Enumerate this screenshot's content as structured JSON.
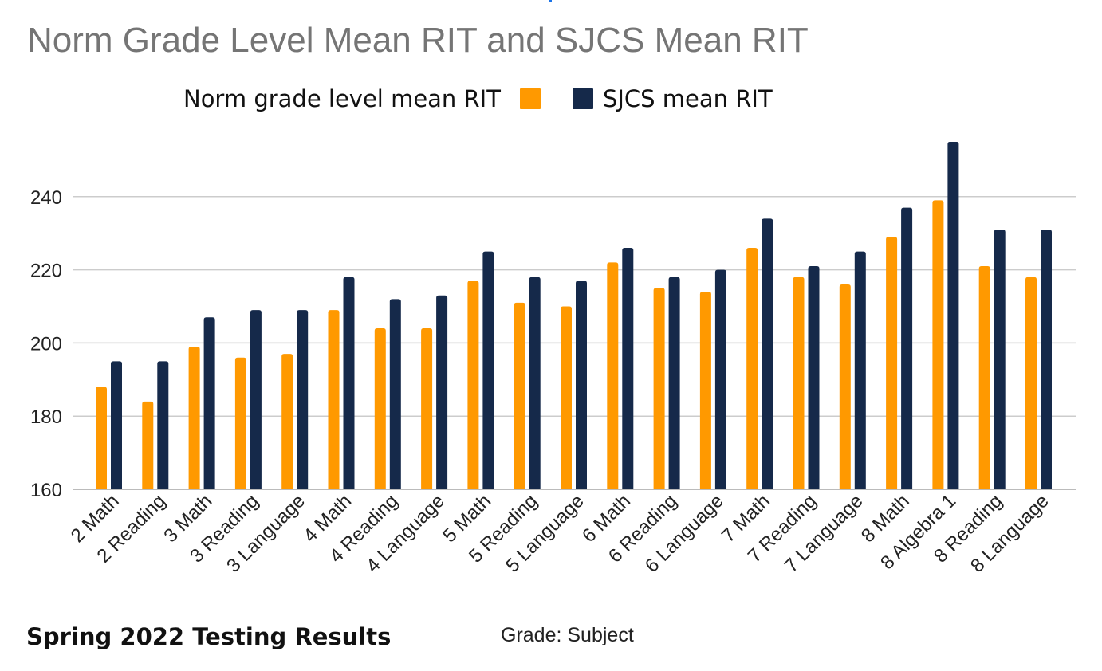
{
  "colors": {
    "norm": "#FF9900",
    "sjcs": "#15294A",
    "grid": "#CCCCCC",
    "title": "#757575",
    "accent": "#1A73E8"
  },
  "chart_data": {
    "type": "bar",
    "title": "Norm Grade Level Mean RIT and SJCS Mean RIT",
    "xlabel": "Grade: Subject",
    "ylabel": "",
    "ylim": [
      160,
      255
    ],
    "yticks": [
      160,
      180,
      200,
      220,
      240
    ],
    "grid": true,
    "legend_position": "top",
    "categories": [
      "2 Math",
      "2 Reading",
      "3 Math",
      "3 Reading",
      "3 Language",
      "4 Math",
      "4 Reading",
      "4 Language",
      "5 Math",
      "5 Reading",
      "5 Language",
      "6 Math",
      "6 Reading",
      "6 Language",
      "7 Math",
      "7 Reading",
      "7 Language",
      "8 Math",
      "8 Algebra 1",
      "8 Reading",
      "8 Language"
    ],
    "series": [
      {
        "name": "Norm grade level mean RIT",
        "values": [
          188,
          184,
          199,
          196,
          197,
          209,
          204,
          204,
          217,
          211,
          210,
          222,
          215,
          214,
          226,
          218,
          216,
          229,
          239,
          221,
          218
        ]
      },
      {
        "name": "SJCS mean RIT",
        "values": [
          195,
          195,
          207,
          209,
          209,
          218,
          212,
          213,
          225,
          218,
          217,
          226,
          218,
          220,
          234,
          221,
          225,
          237,
          255,
          231,
          231
        ]
      }
    ]
  },
  "footer": {
    "caption": "Spring 2022 Testing Results"
  }
}
